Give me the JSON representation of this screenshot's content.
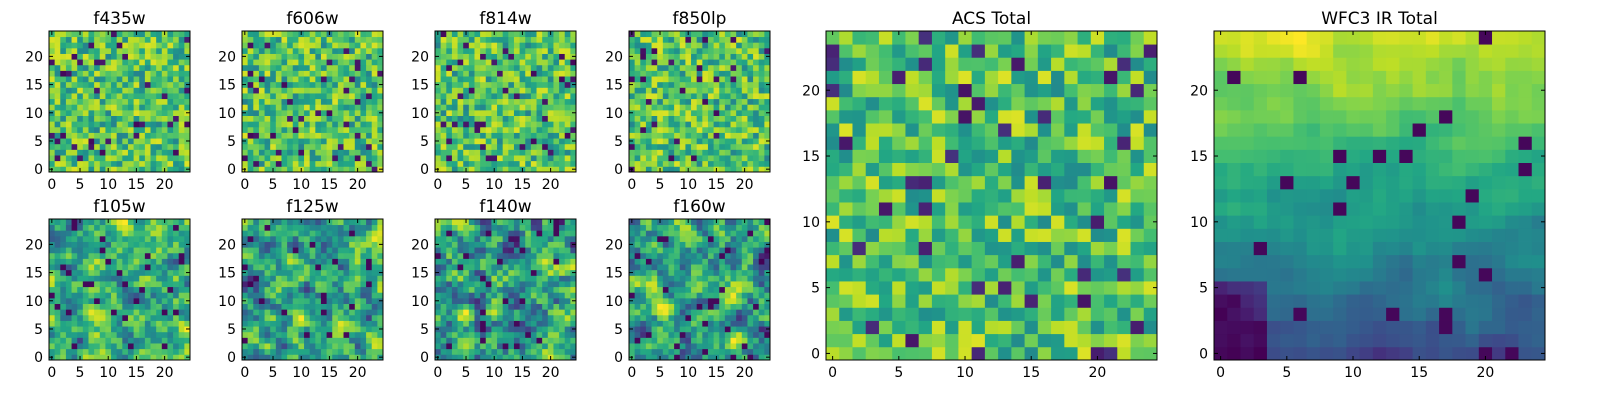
{
  "chart_data": [
    {
      "type": "heatmap",
      "title": "f435w",
      "xlabel": "",
      "ylabel": "",
      "grid": false,
      "xticks": [
        "0",
        "5",
        "10",
        "15",
        "20"
      ],
      "yticks": [
        "0",
        "5",
        "10",
        "15",
        "20"
      ],
      "xlim": [
        -0.5,
        24.5
      ],
      "ylim": [
        -0.5,
        24.5
      ],
      "shape": [
        25,
        25
      ],
      "colormap": "viridis",
      "texture": "noisy",
      "seed": 11
    },
    {
      "type": "heatmap",
      "title": "f606w",
      "xlabel": "",
      "ylabel": "",
      "grid": false,
      "xticks": [
        "0",
        "5",
        "10",
        "15",
        "20"
      ],
      "yticks": [
        "0",
        "5",
        "10",
        "15",
        "20"
      ],
      "xlim": [
        -0.5,
        24.5
      ],
      "ylim": [
        -0.5,
        24.5
      ],
      "shape": [
        25,
        25
      ],
      "colormap": "viridis",
      "texture": "noisy",
      "seed": 23
    },
    {
      "type": "heatmap",
      "title": "f814w",
      "xlabel": "",
      "ylabel": "",
      "grid": false,
      "xticks": [
        "0",
        "5",
        "10",
        "15",
        "20"
      ],
      "yticks": [
        "0",
        "5",
        "10",
        "15",
        "20"
      ],
      "xlim": [
        -0.5,
        24.5
      ],
      "ylim": [
        -0.5,
        24.5
      ],
      "shape": [
        25,
        25
      ],
      "colormap": "viridis",
      "texture": "noisy",
      "seed": 37
    },
    {
      "type": "heatmap",
      "title": "f850lp",
      "xlabel": "",
      "ylabel": "",
      "grid": false,
      "xticks": [
        "0",
        "5",
        "10",
        "15",
        "20"
      ],
      "yticks": [
        "0",
        "5",
        "10",
        "15",
        "20"
      ],
      "xlim": [
        -0.5,
        24.5
      ],
      "ylim": [
        -0.5,
        24.5
      ],
      "shape": [
        25,
        25
      ],
      "colormap": "viridis",
      "texture": "noisy",
      "seed": 41
    },
    {
      "type": "heatmap",
      "title": "f105w",
      "xlabel": "",
      "ylabel": "",
      "grid": false,
      "xticks": [
        "0",
        "5",
        "10",
        "15",
        "20"
      ],
      "yticks": [
        "0",
        "5",
        "10",
        "15",
        "20"
      ],
      "xlim": [
        -0.5,
        24.5
      ],
      "ylim": [
        -0.5,
        24.5
      ],
      "shape": [
        25,
        25
      ],
      "colormap": "viridis",
      "texture": "smooth",
      "seed": 53
    },
    {
      "type": "heatmap",
      "title": "f125w",
      "xlabel": "",
      "ylabel": "",
      "grid": false,
      "xticks": [
        "0",
        "5",
        "10",
        "15",
        "20"
      ],
      "yticks": [
        "0",
        "5",
        "10",
        "15",
        "20"
      ],
      "xlim": [
        -0.5,
        24.5
      ],
      "ylim": [
        -0.5,
        24.5
      ],
      "shape": [
        25,
        25
      ],
      "colormap": "viridis",
      "texture": "smooth",
      "seed": 67
    },
    {
      "type": "heatmap",
      "title": "f140w",
      "xlabel": "",
      "ylabel": "",
      "grid": false,
      "xticks": [
        "0",
        "5",
        "10",
        "15",
        "20"
      ],
      "yticks": [
        "0",
        "5",
        "10",
        "15",
        "20"
      ],
      "xlim": [
        -0.5,
        24.5
      ],
      "ylim": [
        -0.5,
        24.5
      ],
      "shape": [
        25,
        25
      ],
      "colormap": "viridis",
      "texture": "smooth",
      "seed": 71
    },
    {
      "type": "heatmap",
      "title": "f160w",
      "xlabel": "",
      "ylabel": "",
      "grid": false,
      "xticks": [
        "0",
        "5",
        "10",
        "15",
        "20"
      ],
      "yticks": [
        "0",
        "5",
        "10",
        "15",
        "20"
      ],
      "xlim": [
        -0.5,
        24.5
      ],
      "ylim": [
        -0.5,
        24.5
      ],
      "shape": [
        25,
        25
      ],
      "colormap": "viridis",
      "texture": "smooth",
      "seed": 83
    },
    {
      "type": "heatmap",
      "title": "ACS Total",
      "xlabel": "",
      "ylabel": "",
      "grid": false,
      "xticks": [
        "0",
        "5",
        "10",
        "15",
        "20"
      ],
      "yticks": [
        "0",
        "5",
        "10",
        "15",
        "20"
      ],
      "xlim": [
        -0.5,
        24.5
      ],
      "ylim": [
        -0.5,
        24.5
      ],
      "shape": [
        25,
        25
      ],
      "colormap": "viridis",
      "texture": "acs",
      "seed": 97
    },
    {
      "type": "heatmap",
      "title": "WFC3 IR Total",
      "xlabel": "",
      "ylabel": "",
      "grid": false,
      "xticks": [
        "0",
        "5",
        "10",
        "15",
        "20"
      ],
      "yticks": [
        "0",
        "5",
        "10",
        "15",
        "20"
      ],
      "xlim": [
        -0.5,
        24.5
      ],
      "ylim": [
        -0.5,
        24.5
      ],
      "shape": [
        25,
        25
      ],
      "colormap": "viridis",
      "texture": "ir",
      "seed": 101
    }
  ]
}
